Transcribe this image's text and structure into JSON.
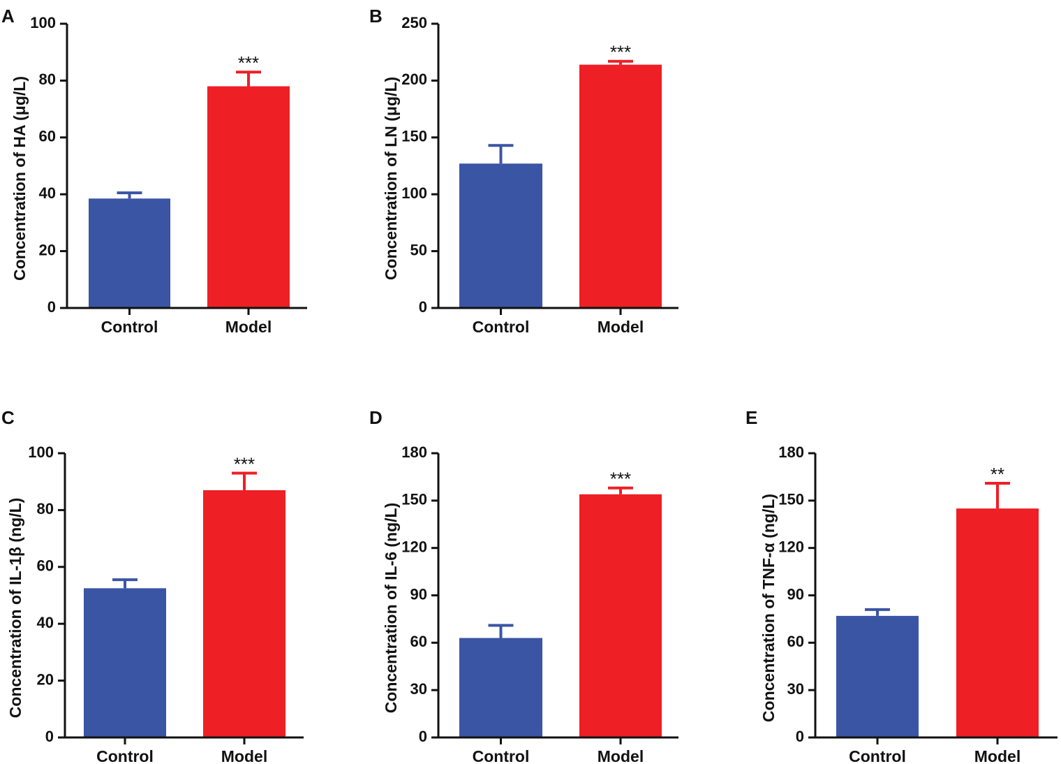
{
  "colors": {
    "control": "#3a55a4",
    "model": "#ee1f25",
    "axis": "#111111"
  },
  "chart_data": [
    {
      "panel": "A",
      "type": "bar",
      "categories": [
        "Control",
        "Model"
      ],
      "values": [
        38.5,
        78
      ],
      "errors": [
        2,
        5
      ],
      "significance": [
        "",
        "***"
      ],
      "ylabel": "Concentration of HA (μg/L)",
      "ylim": [
        0,
        100
      ],
      "yticks": [
        0,
        20,
        40,
        60,
        80,
        100
      ]
    },
    {
      "panel": "B",
      "type": "bar",
      "categories": [
        "Control",
        "Model"
      ],
      "values": [
        127,
        214
      ],
      "errors": [
        16,
        3
      ],
      "significance": [
        "",
        "***"
      ],
      "ylabel": "Concentration of LN (μg/L)",
      "ylim": [
        0,
        250
      ],
      "yticks": [
        0,
        50,
        100,
        150,
        200,
        250
      ]
    },
    {
      "panel": "C",
      "type": "bar",
      "categories": [
        "Control",
        "Model"
      ],
      "values": [
        52.5,
        87
      ],
      "errors": [
        3,
        6
      ],
      "significance": [
        "",
        "***"
      ],
      "ylabel": "Concentration of IL-1β (ng/L)",
      "ylim": [
        0,
        100
      ],
      "yticks": [
        0,
        20,
        40,
        60,
        80,
        100
      ]
    },
    {
      "panel": "D",
      "type": "bar",
      "categories": [
        "Control",
        "Model"
      ],
      "values": [
        63,
        154
      ],
      "errors": [
        8,
        4
      ],
      "significance": [
        "",
        "***"
      ],
      "ylabel": "Concentration of IL-6 (ng/L)",
      "ylim": [
        0,
        180
      ],
      "yticks": [
        0,
        30,
        60,
        90,
        120,
        150,
        180
      ]
    },
    {
      "panel": "E",
      "type": "bar",
      "categories": [
        "Control",
        "Model"
      ],
      "values": [
        77,
        145
      ],
      "errors": [
        4,
        16
      ],
      "significance": [
        "",
        "**"
      ],
      "ylabel": "Concentration of TNF-α (ng/L)",
      "ylim": [
        0,
        180
      ],
      "yticks": [
        0,
        30,
        60,
        90,
        120,
        150,
        180
      ]
    }
  ]
}
